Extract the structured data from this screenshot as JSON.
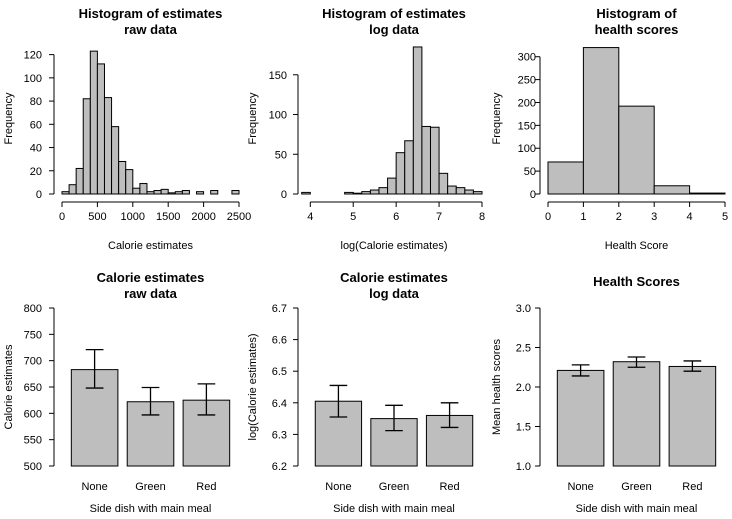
{
  "chart_data": [
    {
      "type": "bar",
      "subtype": "histogram",
      "title": [
        "Histogram of estimates",
        "raw data"
      ],
      "xlabel": "Calorie estimates",
      "ylabel": "Frequency",
      "xlim": [
        0,
        2500
      ],
      "ylim": [
        0,
        130
      ],
      "xticks": [
        0,
        500,
        1000,
        1500,
        2000,
        2500
      ],
      "yticks": [
        0,
        20,
        40,
        60,
        80,
        100,
        120
      ],
      "bin_edges": [
        0,
        100,
        200,
        300,
        400,
        500,
        600,
        700,
        800,
        900,
        1000,
        1100,
        1200,
        1300,
        1400,
        1500,
        1600,
        1700,
        1800,
        1900,
        2000,
        2100,
        2200,
        2300,
        2400,
        2500
      ],
      "values": [
        2,
        8,
        22,
        82,
        123,
        112,
        83,
        58,
        28,
        21,
        5,
        9,
        2,
        3,
        4,
        1,
        2,
        3,
        0,
        2,
        0,
        3,
        0,
        0,
        3
      ]
    },
    {
      "type": "bar",
      "subtype": "histogram",
      "title": [
        "Histogram of estimates",
        "log data"
      ],
      "xlabel": "log(Calorie estimates)",
      "ylabel": "Frequency",
      "xlim": [
        3.9,
        8
      ],
      "ylim": [
        0,
        190
      ],
      "xticks": [
        4,
        5,
        6,
        7,
        8
      ],
      "yticks": [
        0,
        50,
        100,
        150
      ],
      "bin_edges": [
        3.8,
        4.0,
        4.2,
        4.4,
        4.6,
        4.8,
        5.0,
        5.2,
        5.4,
        5.6,
        5.8,
        6.0,
        6.2,
        6.4,
        6.6,
        6.8,
        7.0,
        7.2,
        7.4,
        7.6,
        7.8,
        8.0
      ],
      "values": [
        2,
        0,
        0,
        0,
        0,
        2,
        1,
        3,
        5,
        8,
        20,
        52,
        67,
        185,
        85,
        84,
        26,
        10,
        8,
        5,
        3
      ]
    },
    {
      "type": "bar",
      "subtype": "histogram",
      "title": [
        "Histogram of",
        "health scores"
      ],
      "xlabel": "Health Score",
      "ylabel": "Frequency",
      "xlim": [
        0,
        5
      ],
      "ylim": [
        0,
        330
      ],
      "xticks": [
        0,
        1,
        2,
        3,
        4,
        5
      ],
      "yticks": [
        0,
        50,
        100,
        150,
        200,
        250,
        300
      ],
      "bin_edges": [
        0,
        1,
        2,
        3,
        4,
        5
      ],
      "values": [
        70,
        320,
        192,
        18,
        2
      ]
    },
    {
      "type": "bar",
      "title": [
        "Calorie estimates",
        "raw data"
      ],
      "xlabel": "Side dish with main meal",
      "ylabel": "Calorie estimates",
      "categories": [
        "None",
        "Green",
        "Red"
      ],
      "values": [
        683,
        622,
        625
      ],
      "error_low": [
        648,
        597,
        597
      ],
      "error_high": [
        721,
        649,
        656
      ],
      "ylim": [
        500,
        800
      ],
      "yticks": [
        500,
        550,
        600,
        650,
        700,
        750,
        800
      ]
    },
    {
      "type": "bar",
      "title": [
        "Calorie estimates",
        "log data"
      ],
      "xlabel": "Side dish with main meal",
      "ylabel": "log(Calorie estimates)",
      "categories": [
        "None",
        "Green",
        "Red"
      ],
      "values": [
        6.405,
        6.35,
        6.36
      ],
      "error_low": [
        6.355,
        6.312,
        6.322
      ],
      "error_high": [
        6.455,
        6.392,
        6.4
      ],
      "ylim": [
        6.2,
        6.7
      ],
      "yticks": [
        6.2,
        6.3,
        6.4,
        6.5,
        6.6,
        6.7
      ],
      "ytick_format": 1
    },
    {
      "type": "bar",
      "title": [
        "Health Scores"
      ],
      "xlabel": "Side dish with main meal",
      "ylabel": "Mean health scores",
      "categories": [
        "None",
        "Green",
        "Red"
      ],
      "values": [
        2.21,
        2.32,
        2.26
      ],
      "error_low": [
        2.14,
        2.25,
        2.2
      ],
      "error_high": [
        2.28,
        2.38,
        2.33
      ],
      "ylim": [
        1.0,
        3.0
      ],
      "yticks": [
        1.0,
        1.5,
        2.0,
        2.5,
        3.0
      ],
      "ytick_format": 1
    }
  ]
}
